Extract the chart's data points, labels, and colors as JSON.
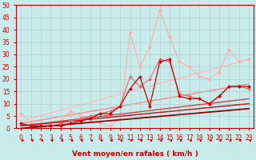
{
  "title": "",
  "xlabel": "Vent moyen/en rafales ( km/h )",
  "ylabel": "",
  "background_color": "#c8ecec",
  "grid_color": "#b0cccc",
  "xlim": [
    -0.5,
    23.5
  ],
  "ylim": [
    0,
    50
  ],
  "yticks": [
    0,
    5,
    10,
    15,
    20,
    25,
    30,
    35,
    40,
    45,
    50
  ],
  "xticks": [
    0,
    1,
    2,
    3,
    4,
    5,
    6,
    7,
    8,
    9,
    10,
    11,
    12,
    13,
    14,
    15,
    16,
    17,
    18,
    19,
    20,
    21,
    22,
    23
  ],
  "series": [
    {
      "comment": "light pink jagged line - highest peaks around x=11-15",
      "x": [
        0,
        1,
        2,
        3,
        4,
        5,
        6,
        7,
        8,
        9,
        10,
        11,
        12,
        13,
        14,
        15,
        16,
        17,
        18,
        19,
        20,
        21,
        22,
        23
      ],
      "y": [
        6,
        2,
        2,
        2,
        3,
        7,
        5,
        3,
        2,
        1,
        4,
        39,
        25,
        33,
        48,
        37,
        27,
        25,
        21,
        20,
        23,
        32,
        27,
        28
      ],
      "color": "#ffaaaa",
      "linewidth": 0.8,
      "marker": "D",
      "markersize": 2.0,
      "zorder": 2
    },
    {
      "comment": "medium pink - moderate peaks",
      "x": [
        0,
        1,
        2,
        3,
        4,
        5,
        6,
        7,
        8,
        9,
        10,
        11,
        12,
        13,
        14,
        15,
        16,
        17,
        18,
        19,
        20,
        21,
        22,
        23
      ],
      "y": [
        2,
        1,
        1,
        1,
        2,
        3,
        4,
        5,
        6,
        7,
        9,
        21,
        17,
        20,
        28,
        27,
        14,
        13,
        12,
        10,
        13,
        17,
        17,
        16
      ],
      "color": "#ee6666",
      "linewidth": 0.8,
      "marker": "D",
      "markersize": 2.0,
      "zorder": 3
    },
    {
      "comment": "dark red jagged - sharp peaks at x=12,15",
      "x": [
        0,
        1,
        2,
        3,
        4,
        5,
        6,
        7,
        8,
        9,
        10,
        11,
        12,
        13,
        14,
        15,
        16,
        17,
        18,
        19,
        20,
        21,
        22,
        23
      ],
      "y": [
        2,
        1,
        1,
        1,
        1,
        2,
        3,
        4,
        6,
        6,
        9,
        16,
        21,
        9,
        27,
        28,
        13,
        12,
        12,
        10,
        13,
        17,
        17,
        17
      ],
      "color": "#cc0000",
      "linewidth": 0.9,
      "marker": "D",
      "markersize": 2.0,
      "zorder": 4
    },
    {
      "comment": "trend line 1 - nearly linear light pink - high slope",
      "x": [
        0,
        23
      ],
      "y": [
        3,
        28
      ],
      "color": "#ffbbbb",
      "linewidth": 1.0,
      "marker": null,
      "markersize": 0,
      "zorder": 1
    },
    {
      "comment": "trend line 2 - medium slope",
      "x": [
        0,
        23
      ],
      "y": [
        2,
        18
      ],
      "color": "#ff8888",
      "linewidth": 1.0,
      "marker": null,
      "markersize": 0,
      "zorder": 1
    },
    {
      "comment": "trend line 3 - lower slope dark",
      "x": [
        0,
        23
      ],
      "y": [
        1,
        12
      ],
      "color": "#cc4444",
      "linewidth": 1.0,
      "marker": null,
      "markersize": 0,
      "zorder": 2
    },
    {
      "comment": "trend line 4 - lower still",
      "x": [
        0,
        23
      ],
      "y": [
        1,
        10
      ],
      "color": "#bb2222",
      "linewidth": 1.1,
      "marker": null,
      "markersize": 0,
      "zorder": 2
    },
    {
      "comment": "trend line 5 - lowest dark red",
      "x": [
        0,
        23
      ],
      "y": [
        0,
        8
      ],
      "color": "#990000",
      "linewidth": 1.3,
      "marker": null,
      "markersize": 0,
      "zorder": 2
    }
  ],
  "arrow_color": "#cc0000",
  "xlabel_color": "#cc0000",
  "tick_color": "#cc0000",
  "axis_color": "#cc0000",
  "xlabel_fontsize": 6.5,
  "tick_fontsize": 5.5
}
